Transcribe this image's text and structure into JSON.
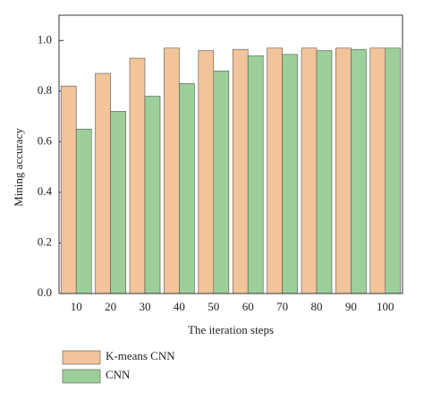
{
  "chart_data": {
    "type": "bar",
    "categories": [
      "10",
      "20",
      "30",
      "40",
      "50",
      "60",
      "70",
      "80",
      "90",
      "100"
    ],
    "series": [
      {
        "name": "K-means CNN",
        "color": "#f2c49a",
        "values": [
          0.82,
          0.87,
          0.93,
          0.97,
          0.96,
          0.965,
          0.97,
          0.97,
          0.97,
          0.97
        ]
      },
      {
        "name": "CNN",
        "color": "#9dcf9a",
        "values": [
          0.65,
          0.72,
          0.78,
          0.83,
          0.88,
          0.94,
          0.945,
          0.96,
          0.965,
          0.97
        ]
      }
    ],
    "xlabel": "The iteration steps",
    "ylabel": "Mining accuracy",
    "ylim": [
      0,
      1.1
    ],
    "yticks": [
      {
        "value": 0,
        "label": "0.0"
      },
      {
        "value": 0.2,
        "label": "0.2"
      },
      {
        "value": 0.4,
        "label": "0.4"
      },
      {
        "value": 0.6,
        "label": "0.6"
      },
      {
        "value": 0.8,
        "label": "0.8"
      },
      {
        "value": 1.0,
        "label": "1.0"
      }
    ]
  }
}
